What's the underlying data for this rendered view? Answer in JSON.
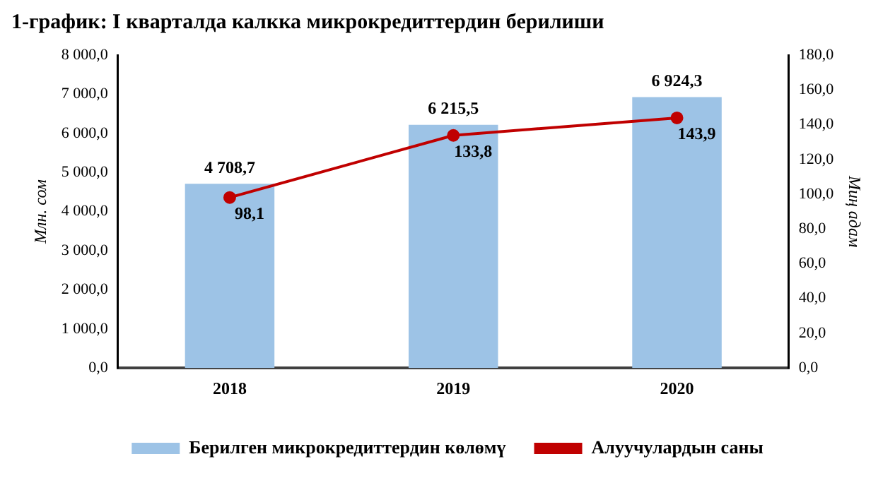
{
  "chart_data": {
    "type": "bar",
    "title": "1-график: I кварталда калкка микрокредиттердин берилиши",
    "categories": [
      "2018",
      "2019",
      "2020"
    ],
    "ylabel": "Млн. сом",
    "y2label": "Миң адам",
    "series": [
      {
        "name": "Берилген микрокредиттердин көлөмү",
        "color": "#9dc3e6",
        "values": [
          4708.7,
          6215.5,
          6924.3
        ],
        "value_labels": [
          "4 708,7",
          "6 215,5",
          "6 924,3"
        ]
      },
      {
        "name": "Алуучулардын саны",
        "type": "line",
        "axis": "y2",
        "color": "#c00000",
        "marker": "circle",
        "values": [
          98.1,
          133.8,
          143.9
        ],
        "value_labels": [
          "98,1",
          "133,8",
          "143,9"
        ]
      }
    ],
    "ylim": [
      0,
      8000
    ],
    "yticks": [
      {
        "value": 0,
        "label": "0,0"
      },
      {
        "value": 1000,
        "label": "1 000,0"
      },
      {
        "value": 2000,
        "label": "2 000,0"
      },
      {
        "value": 3000,
        "label": "3 000,0"
      },
      {
        "value": 4000,
        "label": "4 000,0"
      },
      {
        "value": 5000,
        "label": "5 000,0"
      },
      {
        "value": 6000,
        "label": "6 000,0"
      },
      {
        "value": 7000,
        "label": "7 000,0"
      },
      {
        "value": 8000,
        "label": "8 000,0"
      }
    ],
    "y2lim": [
      0,
      180
    ],
    "y2ticks": [
      {
        "value": 0,
        "label": "0,0"
      },
      {
        "value": 20,
        "label": "20,0"
      },
      {
        "value": 40,
        "label": "40,0"
      },
      {
        "value": 60,
        "label": "60,0"
      },
      {
        "value": 80,
        "label": "80,0"
      },
      {
        "value": 100,
        "label": "100,0"
      },
      {
        "value": 120,
        "label": "120,0"
      },
      {
        "value": 140,
        "label": "140,0"
      },
      {
        "value": 160,
        "label": "160,0"
      },
      {
        "value": 180,
        "label": "180,0"
      }
    ],
    "grid": false,
    "legend": "bottom"
  }
}
